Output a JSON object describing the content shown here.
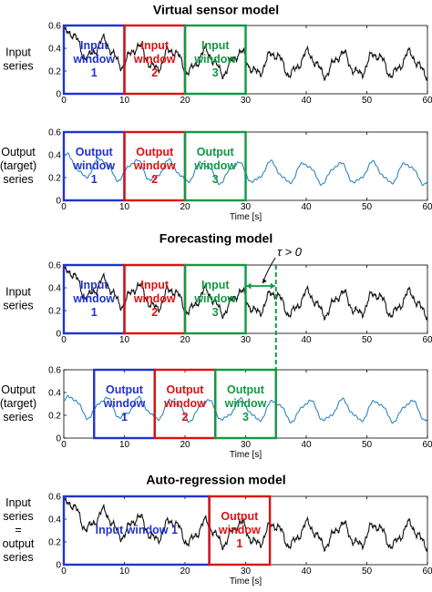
{
  "sections": [
    {
      "title": "Virtual sensor model",
      "panels": [
        {
          "label_lines": [
            "Input",
            "series"
          ],
          "series": "input",
          "shift": 0,
          "windows": [
            {
              "x0": 0,
              "x1": 10,
              "color": "#2233cc",
              "lines": [
                "Input",
                "window",
                "1"
              ]
            },
            {
              "x0": 10,
              "x1": 20,
              "color": "#dd1111",
              "lines": [
                "Input",
                "window",
                "2"
              ]
            },
            {
              "x0": 20,
              "x1": 30,
              "color": "#119944",
              "lines": [
                "Input",
                "window",
                "3"
              ]
            }
          ],
          "show_xlabel": false
        },
        {
          "label_lines": [
            "Output",
            "(target)",
            "series"
          ],
          "series": "output",
          "shift": 0,
          "windows": [
            {
              "x0": 0,
              "x1": 10,
              "color": "#2233cc",
              "lines": [
                "Output",
                "window",
                "1"
              ]
            },
            {
              "x0": 10,
              "x1": 20,
              "color": "#dd1111",
              "lines": [
                "Output",
                "window",
                "2"
              ]
            },
            {
              "x0": 20,
              "x1": 30,
              "color": "#119944",
              "lines": [
                "Output",
                "window",
                "3"
              ]
            }
          ],
          "show_xlabel": true
        }
      ]
    },
    {
      "title": "Forecasting model",
      "panels": [
        {
          "label_lines": [
            "Input",
            "series"
          ],
          "series": "input",
          "shift": 0,
          "windows": [
            {
              "x0": 0,
              "x1": 10,
              "color": "#2233cc",
              "lines": [
                "Input",
                "window",
                "1"
              ]
            },
            {
              "x0": 10,
              "x1": 20,
              "color": "#dd1111",
              "lines": [
                "Input",
                "window",
                "2"
              ]
            },
            {
              "x0": 20,
              "x1": 30,
              "color": "#119944",
              "lines": [
                "Input",
                "window",
                "3"
              ]
            }
          ],
          "show_xlabel": false
        },
        {
          "label_lines": [
            "Output",
            "(target)",
            "series"
          ],
          "series": "output",
          "shift": 5,
          "windows": [
            {
              "x0": 5,
              "x1": 15,
              "color": "#2233cc",
              "lines": [
                "Output",
                "window",
                "1"
              ]
            },
            {
              "x0": 15,
              "x1": 25,
              "color": "#dd1111",
              "lines": [
                "Output",
                "window",
                "2"
              ]
            },
            {
              "x0": 25,
              "x1": 35,
              "color": "#119944",
              "lines": [
                "Output",
                "window",
                "3"
              ]
            }
          ],
          "show_xlabel": true
        }
      ],
      "tau": {
        "label": "τ > 0",
        "from": 30,
        "to": 35
      }
    },
    {
      "title": "Auto-regression model",
      "panels": [
        {
          "label_lines": [
            "Input",
            "series",
            "=",
            "output",
            "series"
          ],
          "series": "input",
          "shift": 0,
          "windows": [
            {
              "x0": 0,
              "x1": 24,
              "color": "#2233cc",
              "lines": [
                "Input window 1"
              ]
            },
            {
              "x0": 24,
              "x1": 34,
              "color": "#dd1111",
              "lines": [
                "Output",
                "window",
                "1"
              ]
            }
          ],
          "show_xlabel": true
        }
      ]
    }
  ],
  "axis": {
    "xlabel": "Time [s]",
    "xticks": [
      "0",
      "10",
      "20",
      "30",
      "40",
      "50",
      "60"
    ],
    "yticks": [
      "0.6",
      "0.4",
      "0.2",
      "0"
    ],
    "xlim": [
      0,
      60
    ],
    "ylim": [
      0,
      0.6
    ]
  },
  "colors": {
    "input_series": "#111111",
    "output_series": "#2e86c1",
    "window1": "#2233cc",
    "window2": "#dd1111",
    "window3": "#119944",
    "tau_marker": "#119944"
  }
}
